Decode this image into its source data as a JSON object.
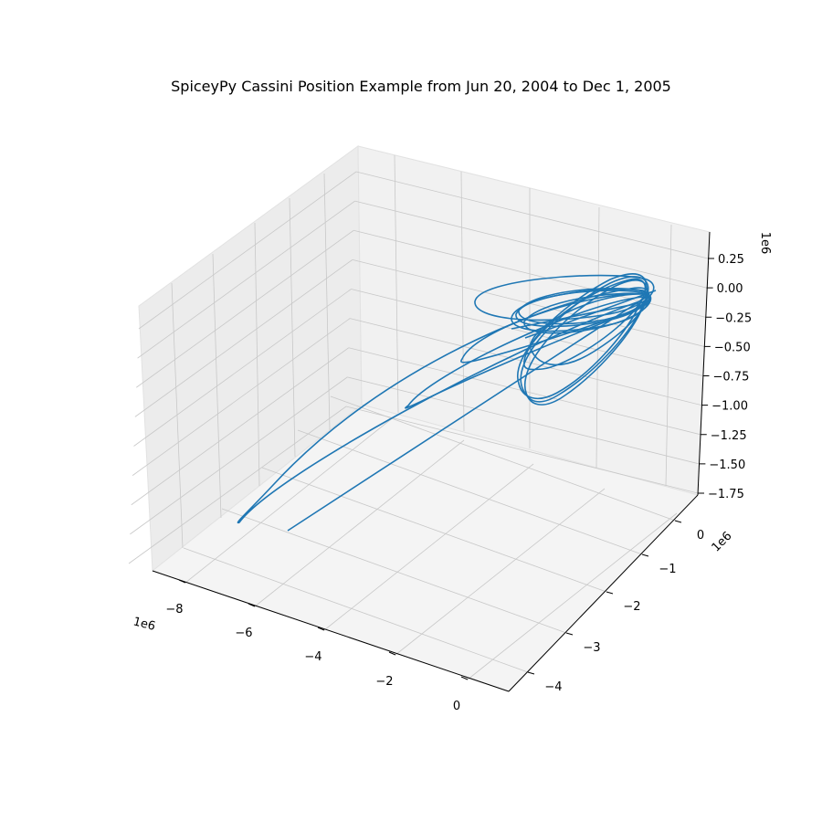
{
  "chart_data": {
    "type": "line",
    "title": "SpiceyPy Cassini Position Example from Jun 20, 2004 to Dec 1, 2005",
    "projection": "3d",
    "grid": true,
    "legend": "none",
    "x_axis": {
      "ticks": [
        "−8",
        "−6",
        "−4",
        "−2",
        "0"
      ],
      "offset_label": "1e6",
      "range": [
        -9000000,
        500000
      ]
    },
    "y_axis": {
      "ticks": [
        "−4",
        "−3",
        "−2",
        "−1",
        "0"
      ],
      "offset_label": "1e6",
      "range": [
        -4500000,
        500000
      ]
    },
    "z_axis": {
      "ticks": [
        "0.25",
        "0.00",
        "−0.25",
        "−0.50",
        "−0.75",
        "−1.00",
        "−1.25",
        "−1.50",
        "−1.75"
      ],
      "offset_label": "1e6",
      "range": [
        -1800000,
        400000
      ]
    },
    "series": [
      {
        "color": "#1f77b4",
        "description_free": true
      }
    ]
  }
}
